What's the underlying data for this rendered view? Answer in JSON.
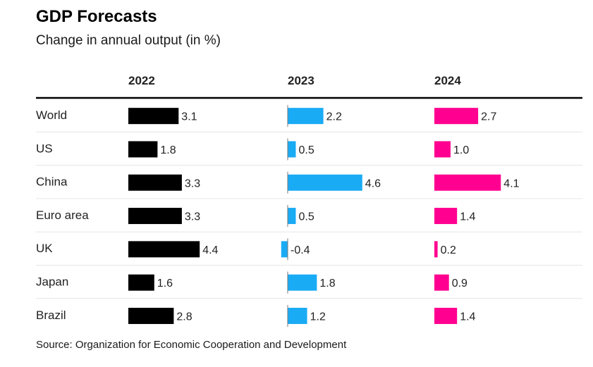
{
  "title": "GDP Forecasts",
  "subtitle": "Change in annual output (in %)",
  "source": "Source: Organization for Economic Cooperation and Development",
  "chart_data": {
    "type": "bar",
    "orientation": "horizontal",
    "categories": [
      "World",
      "US",
      "China",
      "Euro area",
      "UK",
      "Japan",
      "Brazil"
    ],
    "series": [
      {
        "name": "2022",
        "color": "#000000",
        "values": [
          3.1,
          1.8,
          3.3,
          3.3,
          4.4,
          1.6,
          2.8
        ]
      },
      {
        "name": "2023",
        "color": "#1aabf5",
        "values": [
          2.2,
          0.5,
          4.6,
          0.5,
          -0.4,
          1.8,
          1.2
        ]
      },
      {
        "name": "2024",
        "color": "#ff0090",
        "values": [
          2.7,
          1.0,
          4.1,
          1.4,
          0.2,
          0.9,
          1.4
        ]
      }
    ],
    "value_labels": {
      "2022": [
        "3.1",
        "1.8",
        "3.3",
        "3.3",
        "4.4",
        "1.6",
        "2.8"
      ],
      "2023": [
        "2.2",
        "0.5",
        "4.6",
        "0.5",
        "-0.4",
        "1.8",
        "1.2"
      ],
      "2024": [
        "2.7",
        "1.0",
        "4.1",
        "1.4",
        "0.2",
        "0.9",
        "1.4"
      ]
    },
    "grid": false,
    "legend": "column headers"
  }
}
